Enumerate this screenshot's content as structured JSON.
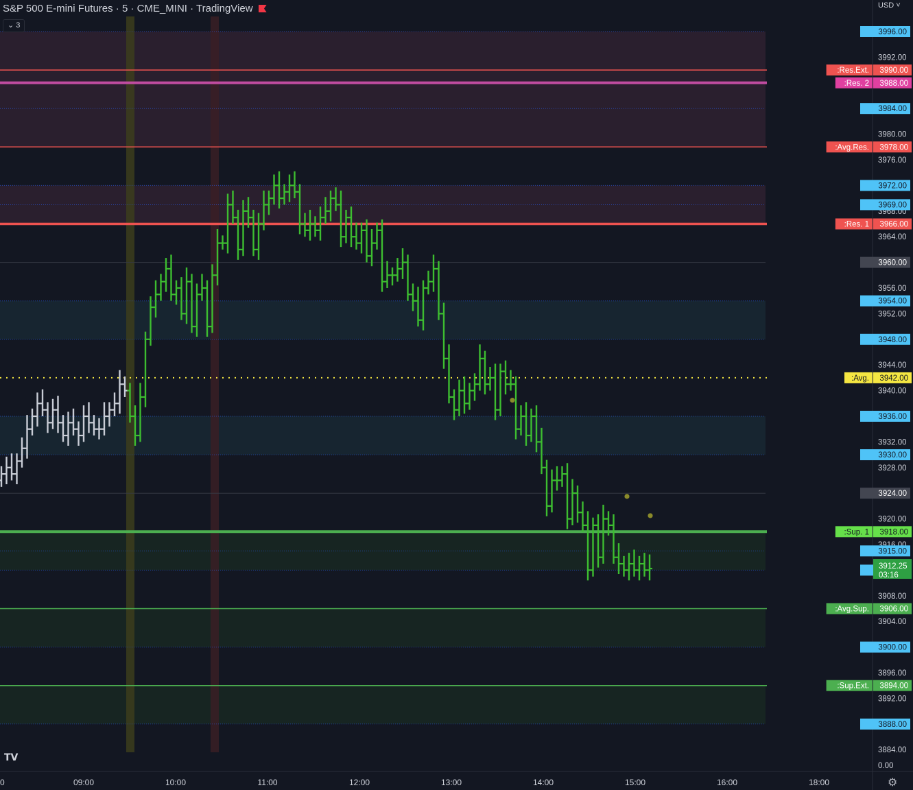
{
  "header": {
    "title": "S&P 500 E-mini Futures · 5 · CME_MINI · TradingView",
    "collapse_label": "3",
    "currency": "USD"
  },
  "colors": {
    "background": "#131722",
    "bar_green": "#3dbd30",
    "bar_gray": "#c9cdd6",
    "res_red": "#ef5350",
    "res2_magenta": "#c04ca0",
    "sup_green": "#4caf50",
    "grid_blue": "#2962ff",
    "avg_yellow": "#f5e642",
    "badge_blue": "#4fc3f7",
    "badge_dark": "#2a2e39"
  },
  "chart_data": {
    "type": "ohlc-bar",
    "title": "S&P 500 E-mini Futures · 5 · CME_MINI · TradingView",
    "ylim": [
      3884,
      3999
    ],
    "y_ticks": [
      "3992.00",
      "3980.00",
      "3976.00",
      "3968.00",
      "3964.00",
      "3956.00",
      "3952.00",
      "3944.00",
      "3940.00",
      "3932.00",
      "3928.00",
      "3920.00",
      "3916.00",
      "3908.00",
      "3904.00",
      "3896.00",
      "3892.00",
      "3884.00"
    ],
    "x_ticks": [
      "0",
      "09:00",
      "10:00",
      "11:00",
      "12:00",
      "13:00",
      "14:00",
      "15:00",
      "16:00",
      "18:00"
    ],
    "volume_tick": "0.00",
    "grid_levels": [
      3996,
      3984,
      3972,
      3969,
      3954,
      3948,
      3936,
      3930,
      3915,
      3912,
      3900,
      3888
    ],
    "grid_labels": [
      "3996.00",
      "3984.00",
      "3972.00",
      "3969.00",
      "3954.00",
      "3948.00",
      "3936.00",
      "3930.00",
      "3915.00",
      "3912.00",
      "3900.00",
      "3888.00"
    ],
    "gray_levels": [
      3960,
      3924
    ],
    "gray_labels": [
      "3960.00",
      "3924.00"
    ],
    "levels": [
      {
        "name": ":Res.Ext.",
        "value": "3990.00",
        "y": 3990,
        "color": "#ef5350",
        "text": "#ffffff"
      },
      {
        "name": ":Res. 2",
        "value": "3988.00",
        "y": 3988,
        "color": "#e040a0",
        "text": "#ffffff"
      },
      {
        "name": ":Avg.Res.",
        "value": "3978.00",
        "y": 3978,
        "color": "#ef5350",
        "text": "#ffffff"
      },
      {
        "name": ":Res. 1",
        "value": "3966.00",
        "y": 3966,
        "color": "#ef5350",
        "text": "#ffffff"
      },
      {
        "name": ":Avg.",
        "value": "3942.00",
        "y": 3942,
        "color": "#f5e642",
        "text": "#131722"
      },
      {
        "name": ":Sup. 1",
        "value": "3918.00",
        "y": 3918,
        "color": "#66e04a",
        "text": "#131722"
      },
      {
        "name": ":Avg.Sup.",
        "value": "3906.00",
        "y": 3906,
        "color": "#4caf50",
        "text": "#ffffff"
      },
      {
        "name": ":Sup.Ext.",
        "value": "3894.00",
        "y": 3894,
        "color": "#4caf50",
        "text": "#ffffff"
      }
    ],
    "last_price": {
      "value": "3912.25",
      "countdown": "03:16",
      "y": 3912.25
    },
    "signal_dots": [
      3938.5,
      3923.5,
      3920.5
    ],
    "series": [
      {
        "name": "pre-market",
        "close": [
          3927,
          3928,
          3927,
          3929,
          3931,
          3934,
          3936,
          3938,
          3937,
          3935,
          3937,
          3935,
          3933,
          3935,
          3934,
          3933,
          3936,
          3935,
          3934,
          3934,
          3936,
          3937,
          3938,
          3941,
          3940
        ]
      },
      {
        "name": "session",
        "close": [
          3936,
          3933,
          3939,
          3948,
          3953,
          3955,
          3957,
          3959,
          3955,
          3956,
          3952,
          3957,
          3950,
          3955,
          3956,
          3950,
          3958,
          3963,
          3963,
          3969,
          3967,
          3962,
          3968,
          3967,
          3962,
          3966,
          3969,
          3970,
          3972,
          3970,
          3971,
          3972,
          3971,
          3966,
          3965,
          3966,
          3965,
          3967,
          3968,
          3970,
          3969,
          3964,
          3967,
          3964,
          3963,
          3965,
          3961,
          3963,
          3965,
          3957,
          3958,
          3958,
          3959,
          3960,
          3955,
          3954,
          3951,
          3956,
          3957,
          3959,
          3952,
          3945,
          3939,
          3937,
          3940,
          3938,
          3940,
          3941,
          3945,
          3941,
          3942,
          3937,
          3943,
          3941,
          3941,
          3934,
          3936,
          3933,
          3936,
          3932,
          3928,
          3922,
          3926,
          3926,
          3927,
          3920,
          3924,
          3921,
          3919,
          3912,
          3919,
          3914,
          3920,
          3919,
          3914,
          3913,
          3912,
          3913,
          3912,
          3913,
          3912,
          3912.25
        ]
      }
    ]
  }
}
